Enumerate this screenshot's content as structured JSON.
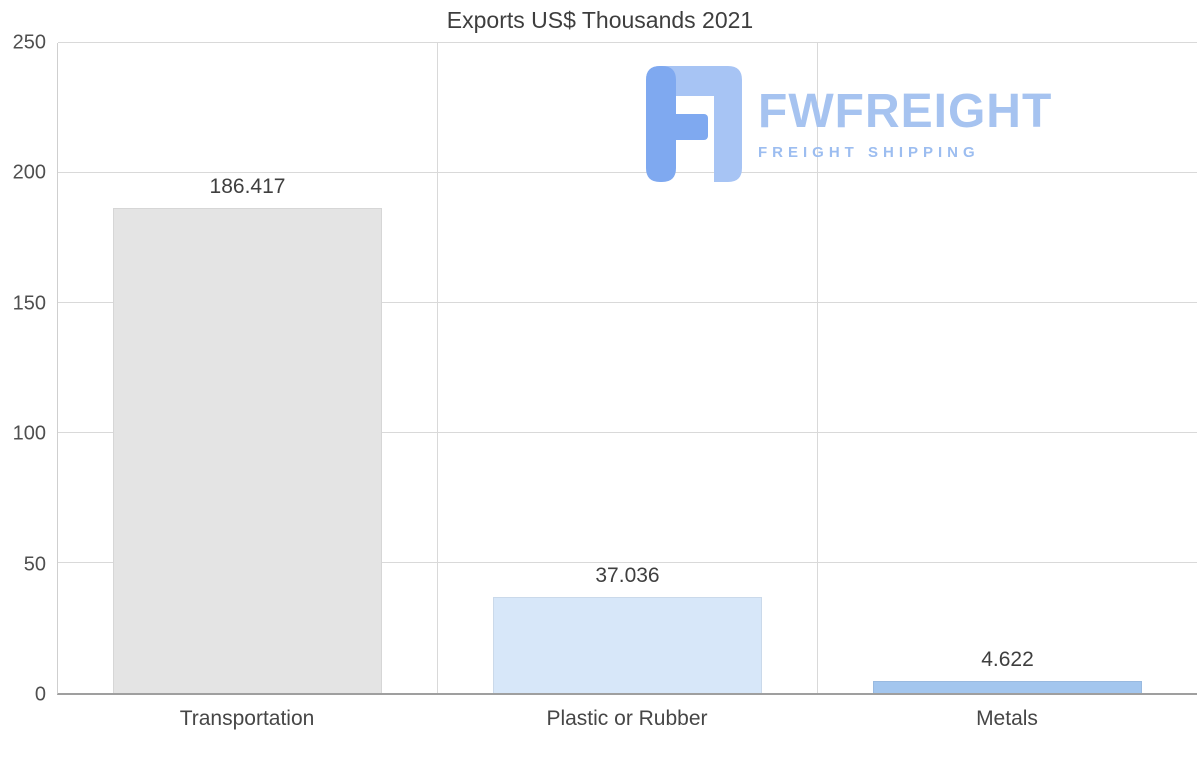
{
  "chart_data": {
    "type": "bar",
    "title": "Exports US$ Thousands 2021",
    "categories": [
      "Transportation",
      "Plastic or Rubber",
      "Metals"
    ],
    "values": [
      186.417,
      37.036,
      4.622
    ],
    "value_labels": [
      "186.417",
      "37.036",
      "4.622"
    ],
    "bar_colors": [
      "#e4e4e4",
      "#d7e7f9",
      "#a3c6ee"
    ],
    "xlabel": "",
    "ylabel": "",
    "ylim": [
      0,
      250
    ],
    "yticks": [
      0,
      50,
      100,
      150,
      200,
      250
    ],
    "grid": true,
    "legend": "none"
  },
  "watermark": {
    "brand": "FWFREIGHT",
    "tagline": "FREIGHT SHIPPING",
    "brand_color": "#a6c3f0",
    "tagline_color": "#9cbdf0",
    "icon_light": "#a7c4f4",
    "icon_dark": "#7fa9f0"
  }
}
